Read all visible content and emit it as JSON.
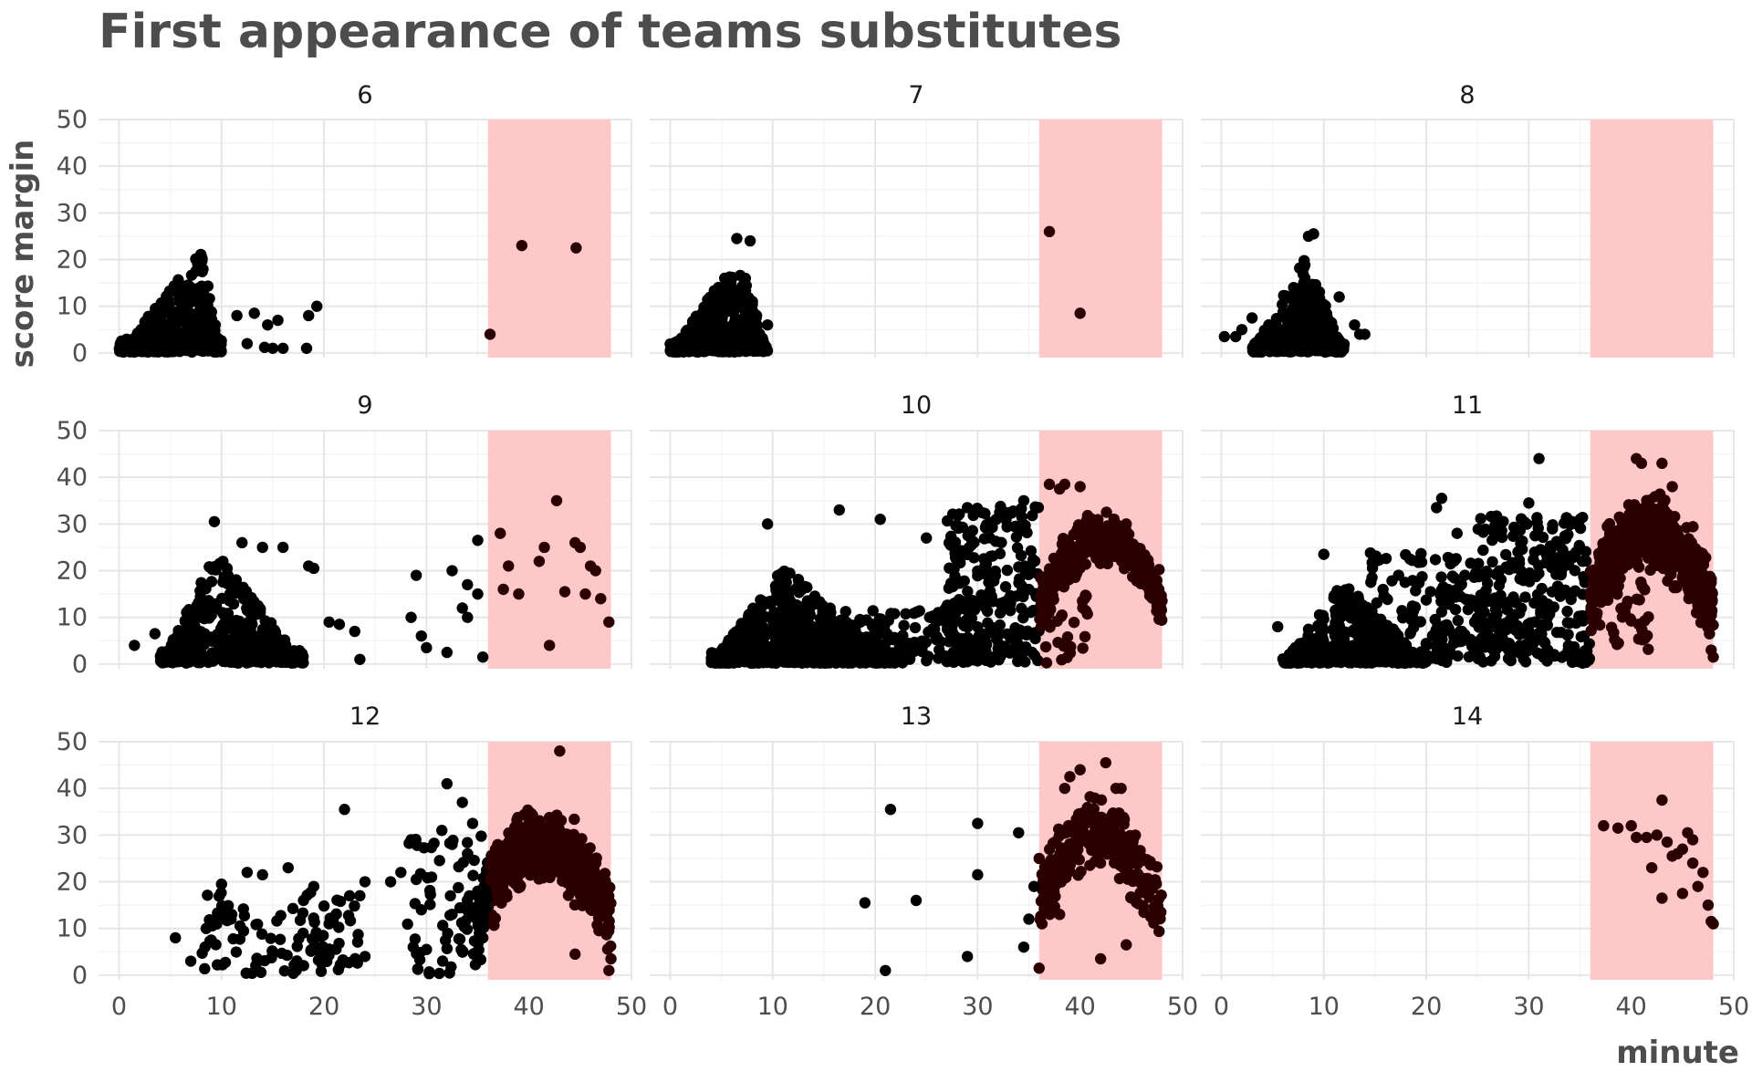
{
  "chart_data": {
    "type": "scatter",
    "title": "First appearance of teams substitutes",
    "xlabel": "minute",
    "ylabel": "score margin",
    "xlim": [
      -2,
      50
    ],
    "ylim": [
      -1,
      50
    ],
    "x_ticks": [
      0,
      10,
      20,
      30,
      40,
      50
    ],
    "x_tick_labels": [
      "0",
      "10",
      "20",
      "30",
      "40",
      "50"
    ],
    "y_ticks": [
      0,
      10,
      20,
      30,
      40,
      50
    ],
    "y_tick_labels": [
      "0",
      "10",
      "20",
      "30",
      "40",
      "50"
    ],
    "grid": true,
    "highlight_band": {
      "x_start": 36,
      "x_end": 48,
      "color": "#ffc8c8"
    },
    "point_color": "#000000",
    "point_color_in_band": "#2a0000",
    "layout": "facet-wrap 3x3",
    "panels": [
      {
        "label": "6",
        "sample_points": [
          [
            36.2,
            4
          ],
          [
            39.3,
            23
          ],
          [
            44.6,
            22.5
          ],
          [
            11.5,
            8
          ],
          [
            13.2,
            8.5
          ],
          [
            14.5,
            6
          ],
          [
            15.5,
            7
          ],
          [
            18.5,
            8
          ],
          [
            19.3,
            10
          ],
          [
            12.5,
            2
          ],
          [
            14.2,
            1.2
          ],
          [
            15,
            1
          ],
          [
            16,
            1
          ],
          [
            18.3,
            1
          ]
        ],
        "clusters": [
          {
            "shape": "tri",
            "x_min": 0,
            "x_max": 10,
            "peak_x": 8,
            "y_peak": 22,
            "n": 420,
            "seed": 61
          },
          {
            "shape": "rect",
            "x_min": 0.5,
            "x_max": 4,
            "y_min": 0,
            "y_max": 3,
            "n": 60,
            "seed": 62
          }
        ]
      },
      {
        "label": "7",
        "sample_points": [
          [
            37,
            26
          ],
          [
            40,
            8.5
          ],
          [
            6.5,
            24.5
          ],
          [
            7.8,
            24
          ],
          [
            9.5,
            6
          ]
        ],
        "clusters": [
          {
            "shape": "tri",
            "x_min": 0,
            "x_max": 9.5,
            "peak_x": 6.7,
            "y_peak": 21,
            "n": 420,
            "seed": 71
          }
        ]
      },
      {
        "label": "8",
        "sample_points": [
          [
            0.3,
            3.5
          ],
          [
            1.4,
            3.5
          ],
          [
            2,
            5
          ],
          [
            3,
            7.5
          ],
          [
            9,
            25.5
          ],
          [
            8.5,
            25
          ],
          [
            11.5,
            12
          ],
          [
            13,
            6
          ],
          [
            13.5,
            4
          ],
          [
            14,
            4
          ]
        ],
        "clusters": [
          {
            "shape": "tri",
            "x_min": 3,
            "x_max": 12,
            "peak_x": 8.2,
            "y_peak": 21,
            "n": 380,
            "seed": 81
          }
        ]
      },
      {
        "label": "9",
        "sample_points": [
          [
            1.5,
            4
          ],
          [
            3.5,
            6.5
          ],
          [
            9.3,
            30.5
          ],
          [
            12,
            26
          ],
          [
            14,
            25
          ],
          [
            16,
            25
          ],
          [
            18.5,
            21
          ],
          [
            19,
            20.5
          ],
          [
            20.5,
            9
          ],
          [
            21.5,
            8.5
          ],
          [
            23,
            7
          ],
          [
            23.5,
            1
          ],
          [
            28.5,
            10
          ],
          [
            29,
            19
          ],
          [
            29.5,
            6
          ],
          [
            30,
            3.5
          ],
          [
            32,
            2.5
          ],
          [
            33.5,
            12
          ],
          [
            34,
            10
          ],
          [
            32.5,
            20
          ],
          [
            34,
            17
          ],
          [
            35,
            26.5
          ],
          [
            35,
            15
          ],
          [
            35.5,
            1.5
          ],
          [
            37.2,
            28
          ],
          [
            37.5,
            16
          ],
          [
            38,
            21
          ],
          [
            39,
            15
          ],
          [
            41,
            22
          ],
          [
            41.5,
            25
          ],
          [
            42,
            4
          ],
          [
            42.7,
            35
          ],
          [
            43.5,
            15.5
          ],
          [
            44.5,
            26
          ],
          [
            45,
            25
          ],
          [
            45.5,
            15
          ],
          [
            46,
            21
          ],
          [
            46.5,
            20
          ],
          [
            47,
            14
          ],
          [
            47.8,
            9
          ]
        ],
        "clusters": [
          {
            "shape": "tri",
            "x_min": 4,
            "x_max": 18,
            "peak_x": 9.5,
            "y_peak": 24,
            "n": 520,
            "seed": 91
          }
        ]
      },
      {
        "label": "10",
        "sample_points": [
          [
            9.5,
            30
          ],
          [
            16.5,
            33
          ],
          [
            20.5,
            31
          ],
          [
            25,
            27
          ],
          [
            29,
            33.5
          ],
          [
            34.5,
            35
          ],
          [
            37,
            38.5
          ],
          [
            38,
            37.5
          ],
          [
            38.5,
            38.5
          ],
          [
            40,
            38
          ],
          [
            44.5,
            30
          ]
        ],
        "clusters": [
          {
            "shape": "tri",
            "x_min": 4,
            "x_max": 22,
            "peak_x": 11,
            "y_peak": 21,
            "n": 900,
            "seed": 101
          },
          {
            "shape": "rect",
            "x_min": 17,
            "x_max": 30,
            "y_min": 0,
            "y_max": 12,
            "n": 150,
            "seed": 102
          },
          {
            "shape": "rect",
            "x_min": 27,
            "x_max": 36,
            "y_min": 0,
            "y_max": 34,
            "n": 230,
            "seed": 103
          },
          {
            "shape": "arc",
            "x_min": 36,
            "x_max": 48,
            "peak_x": 42,
            "y_peak": 27,
            "spread": 5,
            "n": 320,
            "seed": 104
          },
          {
            "shape": "rect",
            "x_min": 36,
            "x_max": 41,
            "y_min": 0,
            "y_max": 15,
            "n": 30,
            "seed": 105
          }
        ]
      },
      {
        "label": "11",
        "sample_points": [
          [
            5.5,
            8
          ],
          [
            10,
            23.5
          ],
          [
            21,
            33.5
          ],
          [
            21.5,
            35.5
          ],
          [
            23,
            28
          ],
          [
            30,
            34.5
          ],
          [
            31,
            44
          ],
          [
            35,
            31
          ],
          [
            40.5,
            44
          ],
          [
            41,
            43
          ],
          [
            43,
            43
          ],
          [
            44,
            38
          ],
          [
            47.8,
            3
          ],
          [
            48,
            1.5
          ]
        ],
        "clusters": [
          {
            "shape": "tri",
            "x_min": 6,
            "x_max": 20,
            "peak_x": 12,
            "y_peak": 18,
            "n": 480,
            "seed": 111
          },
          {
            "shape": "rect",
            "x_min": 14,
            "x_max": 26,
            "y_min": 0,
            "y_max": 24,
            "n": 170,
            "seed": 112
          },
          {
            "shape": "rect",
            "x_min": 25,
            "x_max": 36,
            "y_min": 0,
            "y_max": 32,
            "n": 260,
            "seed": 113
          },
          {
            "shape": "arc",
            "x_min": 36,
            "x_max": 48,
            "peak_x": 41,
            "y_peak": 28,
            "spread": 7,
            "n": 650,
            "seed": 114
          },
          {
            "shape": "rect",
            "x_min": 36,
            "x_max": 42,
            "y_min": 3,
            "y_max": 18,
            "n": 40,
            "seed": 115
          }
        ]
      },
      {
        "label": "12",
        "sample_points": [
          [
            5.5,
            8
          ],
          [
            7,
            3
          ],
          [
            8.5,
            10
          ],
          [
            9,
            7.5
          ],
          [
            10,
            19.5
          ],
          [
            11,
            13
          ],
          [
            12.5,
            22
          ],
          [
            14,
            21.5
          ],
          [
            16.5,
            23
          ],
          [
            18,
            16
          ],
          [
            19,
            19
          ],
          [
            20.5,
            11
          ],
          [
            22,
            35.5
          ],
          [
            22.5,
            17
          ],
          [
            23.5,
            17
          ],
          [
            24,
            20
          ],
          [
            24,
            4
          ],
          [
            26.5,
            20
          ],
          [
            27.5,
            22
          ],
          [
            28.5,
            29
          ],
          [
            29,
            20.5
          ],
          [
            29.5,
            14
          ],
          [
            30,
            5.5
          ],
          [
            30.5,
            21
          ],
          [
            31.5,
            31
          ],
          [
            32,
            41
          ],
          [
            32.5,
            28
          ],
          [
            33.5,
            37
          ],
          [
            34,
            26
          ],
          [
            34.5,
            32.5
          ],
          [
            35,
            18
          ],
          [
            35.5,
            8
          ],
          [
            43,
            48
          ],
          [
            44.5,
            4.5
          ],
          [
            47.8,
            1
          ],
          [
            48,
            3.5
          ]
        ],
        "clusters": [
          {
            "shape": "rect",
            "x_min": 8,
            "x_max": 24,
            "y_min": 0,
            "y_max": 18,
            "n": 100,
            "seed": 121
          },
          {
            "shape": "rect",
            "x_min": 28,
            "x_max": 36,
            "y_min": 0,
            "y_max": 30,
            "n": 70,
            "seed": 122
          },
          {
            "shape": "arc",
            "x_min": 35,
            "x_max": 48,
            "peak_x": 41,
            "y_peak": 28,
            "spread": 7,
            "n": 560,
            "seed": 123
          }
        ]
      },
      {
        "label": "13",
        "sample_points": [
          [
            19,
            15.5
          ],
          [
            21,
            1
          ],
          [
            21.5,
            35.5
          ],
          [
            24,
            16
          ],
          [
            29,
            4
          ],
          [
            30,
            21.5
          ],
          [
            30,
            32.5
          ],
          [
            34,
            30.5
          ],
          [
            34.5,
            6
          ],
          [
            35,
            12
          ],
          [
            35.5,
            19
          ],
          [
            36,
            1.5
          ],
          [
            36,
            25
          ],
          [
            38.5,
            40
          ],
          [
            39,
            42.5
          ],
          [
            40,
            44
          ],
          [
            42,
            3.5
          ],
          [
            42.5,
            45.5
          ],
          [
            43.5,
            40
          ],
          [
            44,
            40
          ],
          [
            44.5,
            6.5
          ],
          [
            38,
            13
          ]
        ],
        "clusters": [
          {
            "shape": "arc",
            "x_min": 36,
            "x_max": 48,
            "peak_x": 41,
            "y_peak": 30,
            "spread": 7,
            "n": 280,
            "seed": 131
          }
        ]
      },
      {
        "label": "14",
        "sample_points": [
          [
            37.3,
            32
          ],
          [
            38.7,
            31.5
          ],
          [
            40,
            32
          ],
          [
            40.5,
            29.5
          ],
          [
            41.5,
            29.5
          ],
          [
            42,
            23
          ],
          [
            42.5,
            30
          ],
          [
            43,
            37.5
          ],
          [
            43.5,
            28.5
          ],
          [
            43,
            16.5
          ],
          [
            44,
            25.5
          ],
          [
            44.5,
            26
          ],
          [
            45,
            27
          ],
          [
            45,
            17.5
          ],
          [
            45.5,
            30.5
          ],
          [
            46,
            29
          ],
          [
            46,
            24
          ],
          [
            46.5,
            19
          ],
          [
            47,
            22
          ],
          [
            47.5,
            15
          ],
          [
            47.8,
            11.5
          ],
          [
            48,
            11
          ]
        ],
        "clusters": []
      }
    ]
  }
}
